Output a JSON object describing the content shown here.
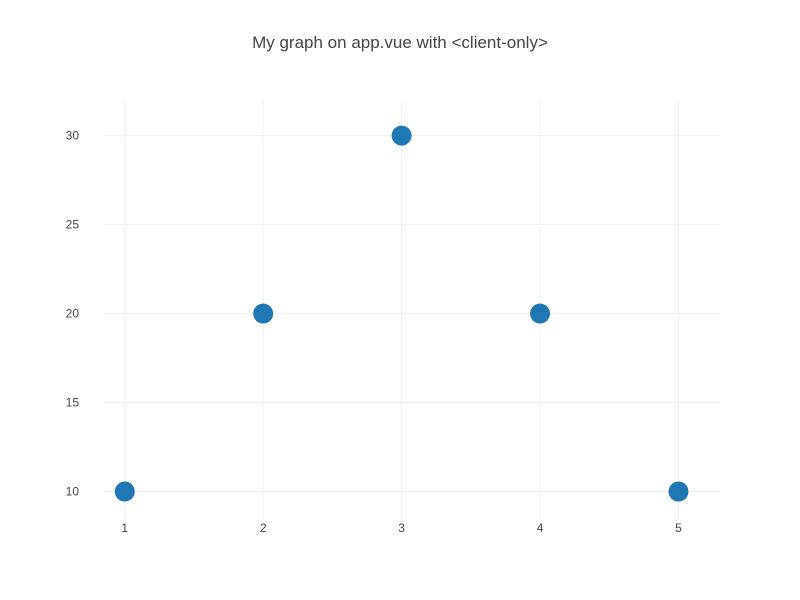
{
  "chart_data": {
    "type": "scatter",
    "title": "My graph on app.vue with <client-only>",
    "xlabel": "",
    "ylabel": "",
    "x": [
      1,
      2,
      3,
      4,
      5
    ],
    "y": [
      10,
      20,
      30,
      20,
      10
    ],
    "xlim": [
      0.85,
      5.3
    ],
    "ylim": [
      8.4,
      32
    ],
    "x_ticks": [
      1,
      2,
      3,
      4,
      5
    ],
    "y_ticks": [
      10,
      15,
      20,
      25,
      30
    ],
    "grid": true,
    "legend": "none",
    "marker_color": "#1f77b4",
    "grid_color": "#eeeeee"
  }
}
